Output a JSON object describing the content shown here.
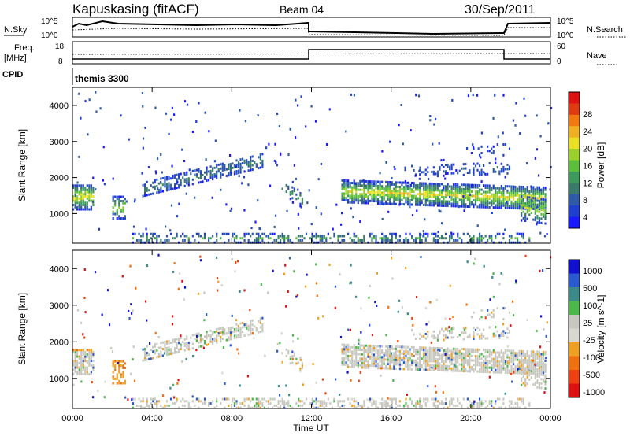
{
  "header": {
    "title": "Kapuskasing (fitACF)",
    "beam": "Beam 04",
    "date": "30/Sep/2011"
  },
  "panels": {
    "nsky_label": "N.Sky",
    "nsearch_label": "N.Search",
    "freq_label_1": "Freq.",
    "freq_label_2": "[MHz]",
    "nave_label": "Nave",
    "cpid_label": "CPID",
    "cpid_text": "themis 3300",
    "nsky_ticks": [
      "10^5",
      "10^0"
    ],
    "nsky_ticks_right": [
      "10^5",
      "10^0"
    ],
    "freq_ticks": [
      "18",
      "8"
    ],
    "nave_ticks": [
      "60",
      "0"
    ]
  },
  "colors": {
    "power": [
      "#1a1aff",
      "#1f3fd0",
      "#2f5aa8",
      "#3a7a6a",
      "#3c9a5a",
      "#5bbf3a",
      "#9ad02a",
      "#e8e020",
      "#f0b020",
      "#f07a10",
      "#e03a10",
      "#e01010"
    ],
    "velocity": [
      "#1010d0",
      "#2a5ad0",
      "#3a8a8a",
      "#4cb84c",
      "#c8c8c0",
      "#d8d8d0",
      "#f0a020",
      "#f07010",
      "#f04010",
      "#e01010"
    ]
  },
  "chart_data": [
    {
      "type": "heatmap",
      "name": "power",
      "ylabel": "Slant Range [km]",
      "xlabel": "Time UT",
      "x_ticks": [
        "00:00",
        "04:00",
        "08:00",
        "12:00",
        "16:00",
        "20:00",
        "00:00"
      ],
      "y_ticks": [
        "1000",
        "2000",
        "3000",
        "4000"
      ],
      "ylim": [
        180,
        4500
      ],
      "colorbar_label": "Power [dB]",
      "colorbar_ticks": [
        "4",
        "8",
        "12",
        "16",
        "20",
        "24",
        "28"
      ]
    },
    {
      "type": "heatmap",
      "name": "velocity",
      "ylabel": "Slant Range [km]",
      "xlabel": "Time UT",
      "x_ticks": [
        "00:00",
        "04:00",
        "08:00",
        "12:00",
        "16:00",
        "20:00",
        "00:00"
      ],
      "y_ticks": [
        "1000",
        "2000",
        "3000",
        "4000"
      ],
      "ylim": [
        180,
        4500
      ],
      "colorbar_label": "Velocity [m s^-1]",
      "colorbar_ticks": [
        "1000",
        "500",
        "100",
        "25",
        "-25",
        "-100",
        "-500",
        "-1000"
      ]
    }
  ]
}
